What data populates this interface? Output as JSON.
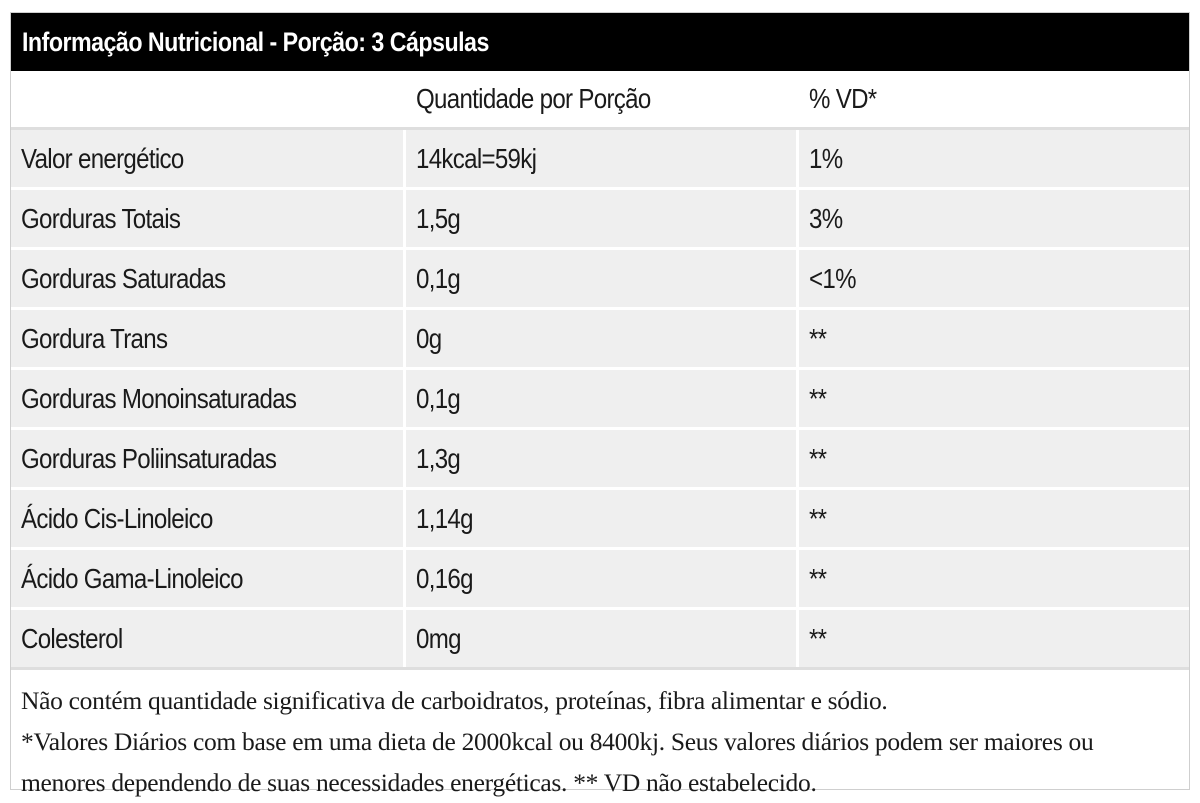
{
  "title": "Informação Nutricional - Porção: 3 Cápsulas",
  "header": {
    "col1": "",
    "col2": "Quantidade por Porção",
    "col3": "% VD*"
  },
  "rows": [
    {
      "nutrient": "Valor energético",
      "amount": "14kcal=59kj",
      "vd": "1%"
    },
    {
      "nutrient": "Gorduras Totais",
      "amount": "1,5g",
      "vd": "3%"
    },
    {
      "nutrient": "Gorduras Saturadas",
      "amount": "0,1g",
      "vd": "<1%"
    },
    {
      "nutrient": "Gordura Trans",
      "amount": "0g",
      "vd": "**"
    },
    {
      "nutrient": "Gorduras Monoinsaturadas",
      "amount": "0,1g",
      "vd": "**"
    },
    {
      "nutrient": "Gorduras Poliinsaturadas",
      "amount": "1,3g",
      "vd": "**"
    },
    {
      "nutrient": "Ácido Cis-Linoleico",
      "amount": "1,14g",
      "vd": "**"
    },
    {
      "nutrient": "Ácido Gama-Linoleico",
      "amount": "0,16g",
      "vd": "**"
    },
    {
      "nutrient": "Colesterol",
      "amount": "0mg",
      "vd": "**"
    }
  ],
  "footer": {
    "line1": "Não contém quantidade significativa de carboidratos, proteínas, fibra alimentar e sódio.",
    "line2": "*Valores Diários com base em uma dieta de 2000kcal ou 8400kj. Seus valores diários podem ser maiores ou menores dependendo de suas necessidades energéticas. ** VD não estabelecido."
  }
}
